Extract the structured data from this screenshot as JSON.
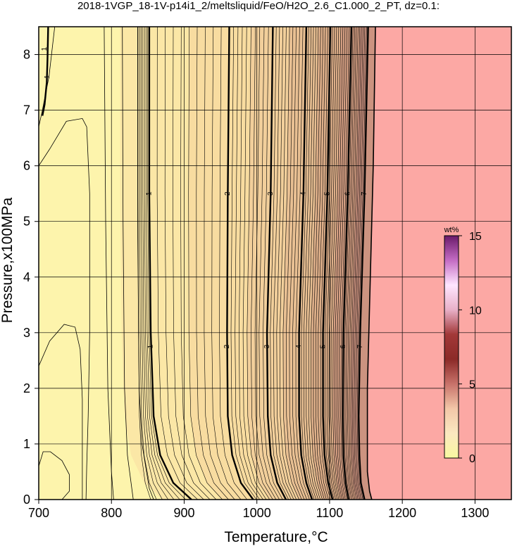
{
  "title": "2018-1VGP_18-1V-p14i1_2/meltsliquid/FeO/H2O_2.6_C1.000_2_PT, dz=0.1:",
  "colors": {
    "low_field": "#fdf4ac",
    "melt_field": "#fca8a4",
    "contour": "#000000",
    "grid": "#000000"
  },
  "chart_data": {
    "type": "heatmap",
    "title": "2018-1VGP_18-1V-p14i1_2/meltsliquid/FeO/H2O_2.6_C1.000_2_PT, dz=0.1:",
    "xlabel": "Temperature,°C",
    "ylabel": "Pressure,x100MPa",
    "xlim": [
      700,
      1350
    ],
    "ylim": [
      0,
      8.5
    ],
    "x_ticks": [
      "700",
      "800",
      "900",
      "1000",
      "1100",
      "1200",
      "1300"
    ],
    "y_ticks": [
      "0",
      "1",
      "2",
      "3",
      "4",
      "5",
      "6",
      "7",
      "8"
    ],
    "grid": true,
    "contour_interval": 0.1,
    "major_contours": [
      {
        "level": "1",
        "points": [
          [
            713,
            8.5
          ],
          [
            712,
            7.9
          ],
          [
            711,
            7.5
          ],
          [
            708,
            7.1
          ],
          [
            705,
            6.9
          ]
        ]
      },
      {
        "level": "1",
        "points": [
          [
            852,
            8.5
          ],
          [
            852,
            5.5
          ],
          [
            854,
            3.0
          ],
          [
            858,
            1.5
          ],
          [
            867,
            0.8
          ],
          [
            885,
            0.3
          ],
          [
            910,
            0.0
          ]
        ]
      },
      {
        "level": "2",
        "points": [
          [
            962,
            8.5
          ],
          [
            960,
            5.5
          ],
          [
            959,
            3.0
          ],
          [
            960,
            1.5
          ],
          [
            966,
            0.8
          ],
          [
            978,
            0.3
          ],
          [
            995,
            0.0
          ]
        ]
      },
      {
        "level": "3",
        "points": [
          [
            1022,
            8.5
          ],
          [
            1019,
            5.5
          ],
          [
            1014,
            3.0
          ],
          [
            1015,
            1.5
          ],
          [
            1019,
            0.8
          ],
          [
            1028,
            0.3
          ],
          [
            1040,
            0.0
          ]
        ]
      },
      {
        "level": "4",
        "points": [
          [
            1068,
            8.5
          ],
          [
            1064,
            5.5
          ],
          [
            1058,
            3.0
          ],
          [
            1058,
            1.5
          ],
          [
            1061,
            0.8
          ],
          [
            1068,
            0.3
          ],
          [
            1076,
            0.0
          ]
        ]
      },
      {
        "level": "5",
        "points": [
          [
            1101,
            8.5
          ],
          [
            1097,
            5.5
          ],
          [
            1091,
            3.0
          ],
          [
            1091,
            1.5
          ],
          [
            1093,
            0.8
          ],
          [
            1098,
            0.3
          ],
          [
            1104,
            0.0
          ]
        ]
      },
      {
        "level": "6",
        "points": [
          [
            1130,
            8.5
          ],
          [
            1125,
            5.5
          ],
          [
            1119,
            3.0
          ],
          [
            1118,
            1.5
          ],
          [
            1119,
            0.8
          ],
          [
            1122,
            0.3
          ],
          [
            1126,
            0.0
          ]
        ]
      },
      {
        "level": "7",
        "points": [
          [
            1153,
            8.5
          ],
          [
            1148,
            5.5
          ],
          [
            1142,
            3.0
          ],
          [
            1140,
            1.5
          ],
          [
            1141,
            0.8
          ],
          [
            1143,
            0.3
          ],
          [
            1148,
            0.0
          ]
        ]
      }
    ],
    "contour_labels": [
      {
        "text": "1",
        "x": 712,
        "y": 7.6
      },
      {
        "text": "1",
        "x": 708,
        "y": 8.1
      },
      {
        "text": "1",
        "x": 852,
        "y": 5.5
      },
      {
        "text": "2",
        "x": 960,
        "y": 5.5
      },
      {
        "text": "3",
        "x": 1019,
        "y": 5.5
      },
      {
        "text": "4",
        "x": 1064,
        "y": 5.5
      },
      {
        "text": "5",
        "x": 1097,
        "y": 5.5
      },
      {
        "text": "6",
        "x": 1125,
        "y": 5.5
      },
      {
        "text": "7",
        "x": 1148,
        "y": 5.5
      },
      {
        "text": "1",
        "x": 854,
        "y": 2.75
      },
      {
        "text": "2",
        "x": 959,
        "y": 2.75
      },
      {
        "text": "3",
        "x": 1014,
        "y": 2.75
      },
      {
        "text": "4",
        "x": 1058,
        "y": 2.75
      },
      {
        "text": "5",
        "x": 1091,
        "y": 2.75
      },
      {
        "text": "6",
        "x": 1119,
        "y": 2.75
      },
      {
        "text": "7",
        "x": 1142,
        "y": 2.75
      }
    ],
    "minor_near_zero_contours": [
      {
        "points": [
          [
            722,
            8.5
          ],
          [
            714,
            7.6
          ],
          [
            705,
            7.0
          ],
          [
            700,
            6.7
          ]
        ]
      },
      {
        "points": [
          [
            700,
            6.0
          ],
          [
            715,
            6.3
          ],
          [
            738,
            6.8
          ],
          [
            760,
            6.85
          ],
          [
            766,
            6.7
          ],
          [
            770,
            5.5
          ],
          [
            770,
            3.0
          ],
          [
            768,
            1.5
          ],
          [
            766,
            0.6
          ],
          [
            765,
            0.0
          ]
        ]
      },
      {
        "points": [
          [
            700,
            2.4
          ],
          [
            715,
            2.85
          ],
          [
            735,
            3.15
          ],
          [
            750,
            3.1
          ],
          [
            757,
            2.7
          ],
          [
            760,
            1.8
          ],
          [
            760,
            0.6
          ],
          [
            760,
            0.0
          ]
        ]
      },
      {
        "points": [
          [
            700,
            0.6
          ],
          [
            706,
            0.86
          ],
          [
            716,
            0.86
          ],
          [
            732,
            0.7
          ],
          [
            742,
            0.45
          ],
          [
            742,
            0.15
          ],
          [
            732,
            0.0
          ]
        ]
      },
      {
        "points": [
          [
            790,
            8.5
          ],
          [
            792,
            5.0
          ],
          [
            795,
            2.0
          ],
          [
            800,
            0.5
          ],
          [
            803,
            0.0
          ]
        ]
      },
      {
        "points": [
          [
            815,
            8.5
          ],
          [
            816,
            5.0
          ],
          [
            818,
            2.0
          ],
          [
            822,
            0.8
          ],
          [
            830,
            0.0
          ]
        ]
      },
      {
        "points": [
          [
            836,
            8.5
          ],
          [
            836,
            5.0
          ],
          [
            838,
            2.0
          ],
          [
            842,
            1.0
          ],
          [
            852,
            0.2
          ],
          [
            858,
            0.0
          ]
        ]
      }
    ],
    "melt_boundary": [
      [
        1163,
        8.5
      ],
      [
        1160,
        6.0
      ],
      [
        1155,
        3.5
      ],
      [
        1152,
        2.0
      ],
      [
        1152,
        0.5
      ],
      [
        1155,
        0.15
      ],
      [
        1158,
        0.0
      ]
    ],
    "fields": [
      {
        "name": "low",
        "color": "#fdf4ac"
      },
      {
        "name": "melt",
        "color": "#fca8a4"
      }
    ],
    "colorbar": {
      "unit": "wt%",
      "min": 0,
      "max": 15,
      "ticks": [
        "0",
        "5",
        "10",
        "15"
      ],
      "stops": [
        "#f8f8a0",
        "#fbe8c0",
        "#f3c7a8",
        "#c8726a",
        "#8c2a28",
        "#a23838",
        "#e8b0c8",
        "#ffe6ff",
        "#c46cc4",
        "#6a1a6a"
      ]
    }
  }
}
